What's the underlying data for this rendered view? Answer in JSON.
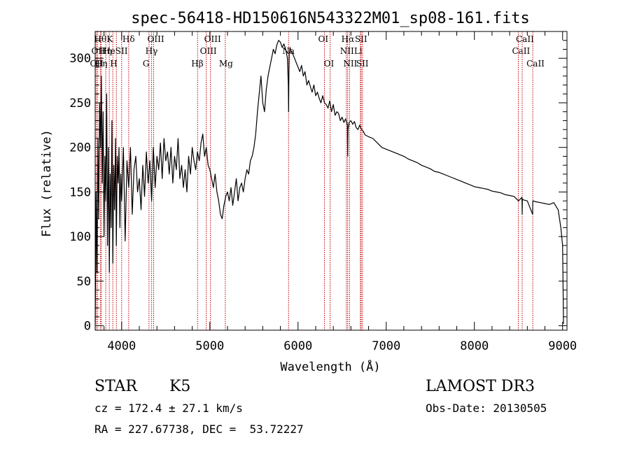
{
  "chart_data": {
    "type": "line",
    "title": "spec-56418-HD150616N543322M01_sp08-161.fits",
    "xlabel": "Wavelength (Å)",
    "ylabel": "Flux (relative)",
    "xlim": [
      3700,
      9050
    ],
    "ylim": [
      -5,
      330
    ],
    "xticks": [
      4000,
      5000,
      6000,
      7000,
      8000,
      9000
    ],
    "yticks": [
      0,
      50,
      100,
      150,
      200,
      250,
      300
    ],
    "series": [
      {
        "x": [
          3700,
          3710,
          3720,
          3730,
          3740,
          3750,
          3760,
          3770,
          3780,
          3790,
          3800,
          3810,
          3820,
          3830,
          3840,
          3850,
          3860,
          3870,
          3880,
          3890,
          3900,
          3910,
          3920,
          3930,
          3940,
          3950,
          3960,
          3970,
          3980,
          3990,
          4000,
          4020,
          4040,
          4060,
          4080,
          4100,
          4120,
          4140,
          4160,
          4180,
          4200,
          4220,
          4240,
          4260,
          4280,
          4300,
          4320,
          4340,
          4360,
          4380,
          4400,
          4420,
          4440,
          4460,
          4480,
          4500,
          4520,
          4540,
          4560,
          4580,
          4600,
          4620,
          4640,
          4660,
          4680,
          4700,
          4720,
          4740,
          4760,
          4780,
          4800,
          4820,
          4840,
          4860,
          4880,
          4900,
          4920,
          4940,
          4960,
          4980,
          5000,
          5020,
          5040,
          5060,
          5080,
          5100,
          5120,
          5140,
          5160,
          5180,
          5200,
          5220,
          5240,
          5260,
          5280,
          5300,
          5320,
          5340,
          5360,
          5380,
          5400,
          5420,
          5440,
          5460,
          5480,
          5500,
          5520,
          5540,
          5560,
          5580,
          5600,
          5620,
          5640,
          5660,
          5680,
          5700,
          5720,
          5740,
          5760,
          5780,
          5800,
          5820,
          5840,
          5860,
          5880,
          5890,
          5893,
          5896,
          5900,
          5910,
          5920,
          5940,
          5960,
          5980,
          6000,
          6020,
          6040,
          6060,
          6080,
          6100,
          6120,
          6140,
          6160,
          6180,
          6200,
          6220,
          6240,
          6260,
          6280,
          6300,
          6320,
          6340,
          6360,
          6380,
          6400,
          6420,
          6440,
          6460,
          6480,
          6500,
          6520,
          6540,
          6560,
          6563,
          6566,
          6580,
          6600,
          6620,
          6640,
          6660,
          6680,
          6700,
          6720,
          6740,
          6760,
          6800,
          6850,
          6900,
          6950,
          7000,
          7050,
          7100,
          7150,
          7200,
          7250,
          7300,
          7350,
          7400,
          7450,
          7500,
          7550,
          7600,
          7650,
          7700,
          7750,
          7800,
          7850,
          7900,
          7950,
          8000,
          8050,
          8100,
          8150,
          8200,
          8250,
          8300,
          8350,
          8400,
          8450,
          8500,
          8540,
          8542,
          8544,
          8560,
          8600,
          8660,
          8662,
          8664,
          8700,
          8750,
          8800,
          8850,
          8900,
          8950,
          8980,
          9000,
          9010
        ],
        "y": [
          2,
          150,
          60,
          210,
          120,
          250,
          200,
          280,
          160,
          240,
          100,
          190,
          140,
          260,
          90,
          200,
          60,
          170,
          110,
          230,
          70,
          180,
          130,
          210,
          90,
          190,
          160,
          200,
          110,
          170,
          140,
          200,
          95,
          185,
          155,
          200,
          125,
          175,
          190,
          150,
          165,
          130,
          180,
          145,
          195,
          160,
          185,
          140,
          200,
          155,
          190,
          175,
          205,
          165,
          210,
          185,
          195,
          170,
          200,
          160,
          190,
          175,
          210,
          165,
          180,
          155,
          175,
          150,
          190,
          170,
          200,
          185,
          175,
          195,
          185,
          205,
          215,
          190,
          200,
          180,
          175,
          165,
          155,
          170,
          150,
          140,
          125,
          120,
          135,
          145,
          150,
          140,
          155,
          135,
          150,
          165,
          140,
          155,
          160,
          150,
          165,
          175,
          170,
          185,
          190,
          200,
          215,
          240,
          260,
          280,
          250,
          240,
          265,
          280,
          290,
          300,
          310,
          305,
          315,
          320,
          318,
          312,
          316,
          310,
          300,
          270,
          240,
          280,
          305,
          312,
          308,
          305,
          300,
          295,
          290,
          285,
          292,
          280,
          285,
          270,
          275,
          268,
          262,
          270,
          258,
          262,
          255,
          250,
          258,
          250,
          248,
          244,
          252,
          240,
          248,
          236,
          240,
          238,
          230,
          234,
          228,
          232,
          225,
          190,
          220,
          228,
          230,
          226,
          229,
          222,
          220,
          225,
          220,
          218,
          214,
          212,
          210,
          205,
          200,
          198,
          196,
          194,
          192,
          190,
          187,
          185,
          183,
          180,
          178,
          176,
          173,
          172,
          170,
          168,
          166,
          164,
          162,
          160,
          158,
          156,
          155,
          154,
          153,
          151,
          150,
          149,
          147,
          146,
          145,
          140,
          144,
          125,
          142,
          141,
          140,
          125,
          138,
          140,
          139,
          138,
          137,
          136,
          138,
          130,
          110,
          90,
          2
        ]
      }
    ],
    "spectral_lines": [
      {
        "x": 3712,
        "label": "OII",
        "row": 2
      },
      {
        "x": 3728,
        "label": "OII",
        "row": 1
      },
      {
        "x": 3760,
        "label": "Hθ",
        "row": 0
      },
      {
        "x": 3770,
        "label": "Hη",
        "row": 2
      },
      {
        "x": 3820,
        "label": "Hη",
        "row": 1
      },
      {
        "x": 3860,
        "label": "He",
        "row": 1
      },
      {
        "x": 3900,
        "label": "K",
        "row": 0
      },
      {
        "x": 3940,
        "label": "H",
        "row": 2
      },
      {
        "x": 4000,
        "label": "SII",
        "row": 1
      },
      {
        "x": 4080,
        "label": "Hδ",
        "row": 0
      },
      {
        "x": 4310,
        "label": "G",
        "row": 2
      },
      {
        "x": 4340,
        "label": "Hγ",
        "row": 1
      },
      {
        "x": 4363,
        "label": "OIII",
        "row": 0
      },
      {
        "x": 4861,
        "label": "Hβ",
        "row": 2
      },
      {
        "x": 4959,
        "label": "OIII",
        "row": 1
      },
      {
        "x": 5007,
        "label": "OIII",
        "row": 0
      },
      {
        "x": 5175,
        "label": "Mg",
        "row": 2
      },
      {
        "x": 5893,
        "label": "Na",
        "row": 1
      },
      {
        "x": 6300,
        "label": "OI",
        "row": 0
      },
      {
        "x": 6364,
        "label": "OI",
        "row": 2
      },
      {
        "x": 6548,
        "label": "NII",
        "row": 1
      },
      {
        "x": 6563,
        "label": "Hα",
        "row": 0
      },
      {
        "x": 6584,
        "label": "NII",
        "row": 2
      },
      {
        "x": 6707,
        "label": "Li",
        "row": 1
      },
      {
        "x": 6716,
        "label": "SII",
        "row": 0
      },
      {
        "x": 6731,
        "label": "SII",
        "row": 2
      },
      {
        "x": 8498,
        "label": "CaII",
        "row": 1
      },
      {
        "x": 8542,
        "label": "CaII",
        "row": 0
      },
      {
        "x": 8662,
        "label": "CaII",
        "row": 2
      }
    ]
  },
  "info": {
    "class_label": "STAR",
    "subclass": "K5",
    "survey": "LAMOST DR3",
    "cz": "cz = 172.4 ± 27.1 km/s",
    "obs_date": "Obs-Date: 20130505",
    "coords": "RA = 227.67738, DEC =  53.72227"
  },
  "colors": {
    "spectral_line": "#c00000",
    "spectrum": "#000000"
  }
}
